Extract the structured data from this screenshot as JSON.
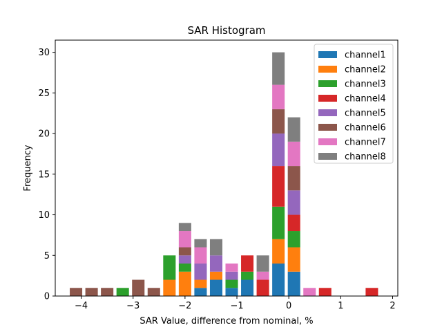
{
  "chart_data": {
    "type": "bar",
    "stacked": true,
    "title": "SAR Histogram",
    "xlabel": "SAR Value, difference from nominal, %",
    "ylabel": "Frequency",
    "xlim": [
      -4.5,
      2.1
    ],
    "ylim": [
      0,
      31.5
    ],
    "xticks": [
      -4,
      -3,
      -2,
      -1,
      0,
      1,
      2
    ],
    "yticks": [
      0,
      5,
      10,
      15,
      20,
      25,
      30
    ],
    "legend_position": "top-right",
    "bin_width": 0.3,
    "bar_width": 0.24,
    "bin_centers": [
      -4.1,
      -3.8,
      -3.5,
      -3.2,
      -2.9,
      -2.6,
      -2.3,
      -2.0,
      -1.7,
      -1.4,
      -1.1,
      -0.8,
      -0.5,
      -0.2,
      0.1,
      0.4,
      0.7,
      1.0,
      1.3,
      1.6
    ],
    "series": [
      {
        "name": "channel1",
        "color": "#1f77b4",
        "values": [
          0,
          0,
          0,
          0,
          0,
          0,
          0,
          0,
          1,
          2,
          1,
          2,
          0,
          4,
          3,
          0,
          0,
          0,
          0,
          0
        ]
      },
      {
        "name": "channel2",
        "color": "#ff7f0e",
        "values": [
          0,
          0,
          0,
          0,
          0,
          0,
          2,
          3,
          1,
          1,
          0,
          0,
          0,
          3,
          3,
          0,
          0,
          0,
          0,
          0
        ]
      },
      {
        "name": "channel3",
        "color": "#2ca02c",
        "values": [
          0,
          0,
          0,
          1,
          0,
          0,
          3,
          1,
          0,
          0,
          1,
          1,
          0,
          4,
          2,
          0,
          0,
          0,
          0,
          0
        ]
      },
      {
        "name": "channel4",
        "color": "#d62728",
        "values": [
          0,
          0,
          0,
          0,
          0,
          0,
          0,
          0,
          0,
          0,
          0,
          2,
          2,
          5,
          2,
          0,
          1,
          0,
          0,
          1
        ]
      },
      {
        "name": "channel5",
        "color": "#9467bd",
        "values": [
          0,
          0,
          0,
          0,
          0,
          0,
          0,
          1,
          2,
          2,
          1,
          0,
          0,
          4,
          3,
          0,
          0,
          0,
          0,
          0
        ]
      },
      {
        "name": "channel6",
        "color": "#8c564b",
        "values": [
          1,
          1,
          1,
          0,
          2,
          1,
          0,
          1,
          0,
          0,
          0,
          0,
          0,
          3,
          3,
          0,
          0,
          0,
          0,
          0
        ]
      },
      {
        "name": "channel7",
        "color": "#e377c2",
        "values": [
          0,
          0,
          0,
          0,
          0,
          0,
          0,
          2,
          2,
          0,
          1,
          0,
          1,
          3,
          3,
          1,
          0,
          0,
          0,
          0
        ]
      },
      {
        "name": "channel8",
        "color": "#7f7f7f",
        "values": [
          0,
          0,
          0,
          0,
          0,
          0,
          0,
          1,
          1,
          2,
          0,
          0,
          2,
          4,
          3,
          0,
          0,
          0,
          0,
          0
        ]
      }
    ]
  }
}
